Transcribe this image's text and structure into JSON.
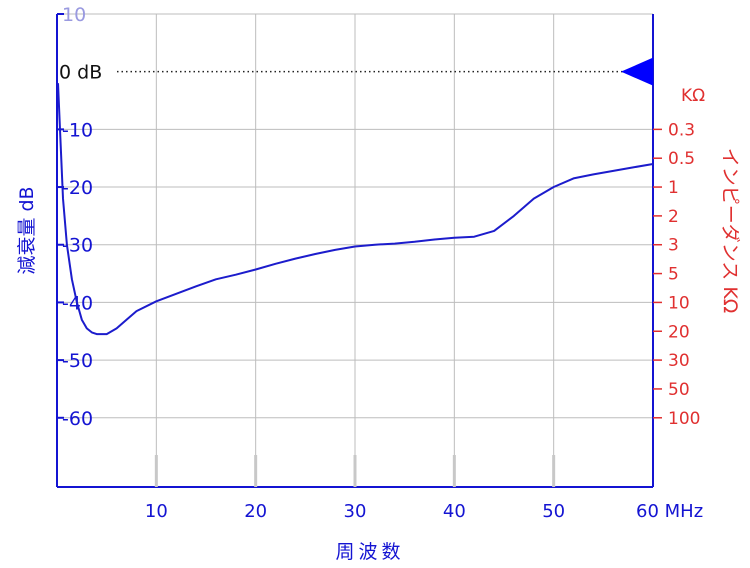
{
  "chart_data": {
    "type": "line",
    "xlabel": "周波数",
    "ylabel": "減衰量 dB",
    "right_label": "インピーダンス KΩ",
    "x_unit": "MHz",
    "right_unit": "KΩ",
    "xlim": [
      0,
      60
    ],
    "ylim": [
      -72,
      10
    ],
    "x_ticks": [
      10,
      20,
      30,
      40,
      50,
      60
    ],
    "x_tick_labels": [
      "10",
      "20",
      "30",
      "40",
      "50",
      "60 MHz"
    ],
    "y_ticks": [
      10,
      -10,
      -20,
      -30,
      -40,
      -50,
      -60
    ],
    "y_tick_labels": [
      "10",
      "-10",
      "-20",
      "-30",
      "-40",
      "-50",
      "-60"
    ],
    "zero_label": "0 dB",
    "right_axis_ticks": [
      {
        "label": "0.3",
        "db": -10
      },
      {
        "label": "0.5",
        "db": -15
      },
      {
        "label": "1",
        "db": -20
      },
      {
        "label": "2",
        "db": -25
      },
      {
        "label": "3",
        "db": -30
      },
      {
        "label": "5",
        "db": -35
      },
      {
        "label": "10",
        "db": -40
      },
      {
        "label": "20",
        "db": -45
      },
      {
        "label": "30",
        "db": -50
      },
      {
        "label": "50",
        "db": -55
      },
      {
        "label": "100",
        "db": -60
      }
    ],
    "grid": true,
    "series": [
      {
        "x": [
          0.1,
          0.3,
          0.6,
          1,
          1.5,
          2,
          2.5,
          3,
          3.5,
          4,
          5,
          6,
          7,
          8,
          10,
          12,
          14,
          16,
          18,
          20,
          22,
          24,
          26,
          28,
          30,
          32,
          34,
          36,
          38,
          40,
          42,
          44,
          46,
          48,
          50,
          52,
          54,
          56,
          58,
          60
        ],
        "y": [
          -2,
          -10,
          -22,
          -30,
          -36,
          -40,
          -43,
          -44.5,
          -45.2,
          -45.5,
          -45.5,
          -44.5,
          -43,
          -41.5,
          -39.8,
          -38.5,
          -37.2,
          -36,
          -35.2,
          -34.3,
          -33.3,
          -32.4,
          -31.6,
          -30.9,
          -30.3,
          -30,
          -29.8,
          -29.5,
          -29.1,
          -28.8,
          -28.6,
          -27.6,
          -25,
          -22,
          -20,
          -18.5,
          -17.8,
          -17.2,
          -16.6,
          -16
        ]
      }
    ],
    "colors": {
      "axis": "#1414d2",
      "right_axis": "#e03030",
      "grid": "#bdbdbd",
      "line": "#1c1ccc",
      "marker": "#0000ff"
    }
  }
}
